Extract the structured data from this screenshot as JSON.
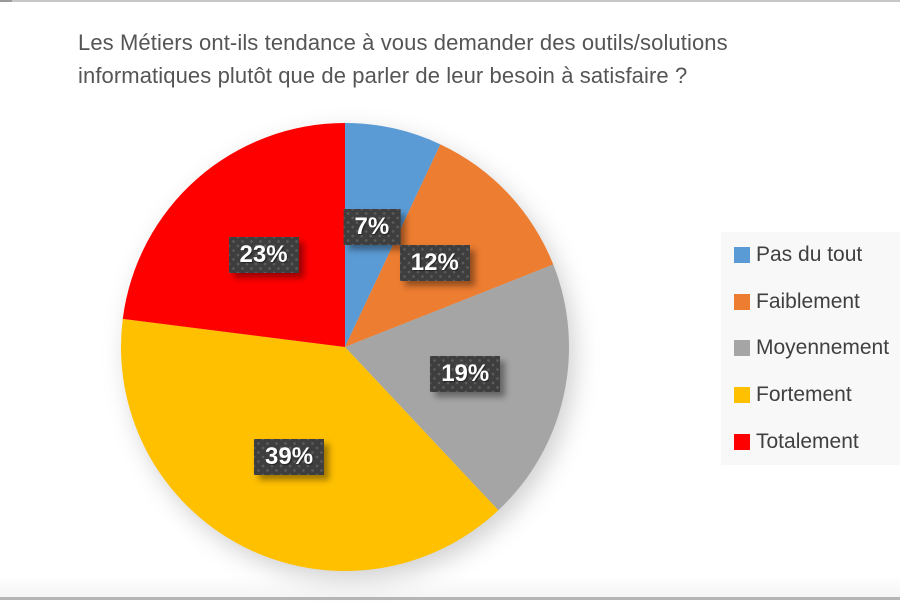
{
  "title": {
    "full": "Les Métiers ont-ils tendance à vous demander des outils/solutions informatiques plutôt que de parler de leur besoin à satisfaire ?",
    "lines": [
      "Les Métiers ont-ils tendance à vous demander des outils/solutions",
      "informatiques plutôt que de parler de leur besoin à satisfaire ?"
    ]
  },
  "chart_data": {
    "type": "pie",
    "title": "Les Métiers ont-ils tendance à vous demander des outils/solutions informatiques plutôt que de parler de leur besoin à satisfaire ?",
    "categories": [
      "Pas du tout",
      "Faiblement",
      "Moyennement",
      "Fortement",
      "Totalement"
    ],
    "values": [
      7,
      12,
      19,
      39,
      23
    ],
    "data_labels": [
      "7%",
      "12%",
      "19%",
      "39%",
      "23%"
    ],
    "colors": [
      "#5B9BD5",
      "#ED7D31",
      "#A5A5A5",
      "#FFC000",
      "#FF0000"
    ],
    "start_angle_deg": 0,
    "direction": "clockwise",
    "legend_position": "right",
    "grid": false,
    "data_label_style": {
      "background": "#3F3F3F",
      "text_color": "#FFFFFF",
      "pattern": "dotted"
    },
    "title_color": "#555555"
  }
}
